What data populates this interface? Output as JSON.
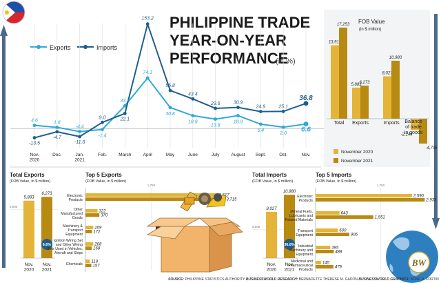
{
  "colors": {
    "exports": "#2fa9d6",
    "imports": "#1f5e8c",
    "nov2020": "#e3b437",
    "nov2021": "#b88a12",
    "ink": "#222222",
    "grid": "#d9dde2",
    "growth_badge": "#1f5e8c"
  },
  "header": {
    "title_lines": [
      "PHILIPPINE TRADE",
      "YEAR-ON-YEAR",
      "PERFORMANCE"
    ],
    "unit": "(in %)"
  },
  "footer": {
    "source_label": "SOURCE:",
    "source_text": "PHILIPPINE STATISTICS AUTHORITY",
    "research_label": "BUSINESSWORLD RESEARCH:",
    "research_text": "BERNADETTE THERESE M. GADON",
    "graphics_label": "BUSINESSWORLD GRAPHICS:",
    "graphics_text": "BONG R. FORTIN"
  },
  "brand": {
    "logo_text": "BW"
  },
  "chart_data": [
    {
      "type": "line",
      "legend": [
        "Exports",
        "Imports"
      ],
      "categories": [
        "Nov.\n2020",
        "Dec.",
        "Jan.\n2021",
        "Feb.",
        "March",
        "April",
        "May",
        "June",
        "July",
        "August",
        "Sept.",
        "Oct.",
        "Nov."
      ],
      "series": [
        {
          "name": "Exports",
          "values": [
            4.6,
            1.8,
            -4.4,
            -1.4,
            33.4,
            74.1,
            30.8,
            18.9,
            13.8,
            18.9,
            6.4,
            2.0,
            6.6
          ]
        },
        {
          "name": "Imports",
          "values": [
            -13.5,
            -4.7,
            -11.8,
            9.0,
            22.1,
            153.2,
            55.8,
            43.4,
            29.6,
            30.9,
            24.9,
            25.1,
            36.8
          ]
        }
      ],
      "labels": [
        "4.6",
        "1.8",
        "-4.4",
        "-1.4",
        "33.4",
        "74.1",
        "30.8",
        "18.9",
        "13.8",
        "18.9",
        "6.4",
        "2.0",
        "6.6"
      ],
      "import_labels": [
        "-13.5",
        "-4.7",
        "-11.8",
        "9.0",
        "22.1",
        "153.2",
        "55.8",
        "43.4",
        "29.6",
        "30.9",
        "24.9",
        "25.1",
        "36.8"
      ],
      "ylim": [
        -20,
        160
      ]
    },
    {
      "type": "bar",
      "title": "FOB Value",
      "unit": "(in $ million)",
      "categories": [
        "Total",
        "Exports",
        "Imports",
        "Balance\nof trade\nin goods"
      ],
      "series": [
        {
          "name": "November 2020",
          "values": [
            13910,
            5883,
            8027,
            -2144
          ]
        },
        {
          "name": "November 2021",
          "values": [
            17253,
            6273,
            10980,
            -4706
          ]
        }
      ],
      "labels_2020": [
        "13,910",
        "5,883",
        "8,027",
        "-2,144"
      ],
      "labels_2021": [
        "17,253",
        "6,273",
        "10,980",
        "-4,706"
      ]
    },
    {
      "type": "bar",
      "title": "Total Exports",
      "unit": "(FOB Value, in $ million)",
      "axis_label": "5,000",
      "categories": [
        "Nov.\n2020",
        "Nov.\n2021"
      ],
      "values": [
        5883,
        6273
      ],
      "labels": [
        "5,883",
        "6,273"
      ],
      "growth": "6.6%",
      "ylim": [
        0,
        6500
      ]
    },
    {
      "type": "bar",
      "title": "Top 5 Exports",
      "unit": "(FOB Value, in $ million)",
      "axis_label": "1,750",
      "categories": [
        "Electronic\nProducts",
        "Other\nManufactured\nGoods",
        "Machinery &\nTransport\nEquipment",
        "Ignition Wiring Set\nand Other Wiring\nSets Used in Vehicles,\nAircraft and Ships",
        "Chemicals"
      ],
      "series": [
        {
          "name": "November 2020",
          "values": [
            3517,
            322,
            209,
            208,
            119
          ]
        },
        {
          "name": "November 2021",
          "values": [
            3715,
            370,
            172,
            168,
            157
          ]
        }
      ],
      "labels_2020": [
        "3,517",
        "322",
        "209",
        "208",
        "119"
      ],
      "labels_2021": [
        "3,715",
        "370",
        "172",
        "168",
        "157"
      ]
    },
    {
      "type": "bar",
      "title": "Total Imports",
      "unit": "(FOB Value, in $ million)",
      "axis_label": "5,000",
      "categories": [
        "Nov.\n2020",
        "Nov.\n2021"
      ],
      "values": [
        8027,
        10980
      ],
      "labels": [
        "8,027",
        "10,980"
      ],
      "growth": "36.8%",
      "ylim": [
        0,
        11000
      ]
    },
    {
      "type": "bar",
      "title": "Top 5 Imports",
      "unit": "(FOB Value, in $ million)",
      "axis_label": "1,750",
      "categories": [
        "Electronic\nProducts",
        "Mineral Fuels,\nLubricants and\nRelated Materials",
        "Transport\nEquipment",
        "Industrial\nMachinery and\nEquipment",
        "Medicinal and\nPharmaceutical\nProducts"
      ],
      "series": [
        {
          "name": "November 2020",
          "values": [
            2590,
            643,
            600,
            395,
            145
          ]
        },
        {
          "name": "November 2021",
          "values": [
            2933,
            1551,
            906,
            488,
            479
          ]
        }
      ],
      "labels_2020": [
        "2,590",
        "643",
        "600",
        "395",
        "145"
      ],
      "labels_2021": [
        "2,933",
        "1,551",
        "906",
        "488",
        "479"
      ]
    }
  ]
}
